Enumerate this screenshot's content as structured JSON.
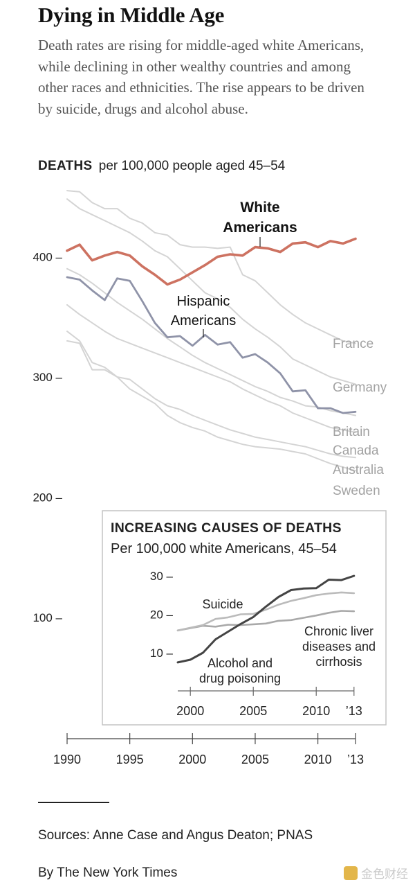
{
  "header": {
    "title": "Dying in Middle Age",
    "subtitle": "Death rates are rising for middle-aged white Americans, while declining in other wealthy countries and among other races and ethnicities. The rise appears to be driven by suicide, drugs and alcohol abuse."
  },
  "unit_label": {
    "bold": "DEATHS",
    "rest": "per 100,000 people aged 45–54"
  },
  "chart_data": [
    {
      "type": "line",
      "title": "",
      "xlabel": "",
      "ylabel": "",
      "x": [
        1990,
        1991,
        1992,
        1993,
        1994,
        1995,
        1996,
        1997,
        1998,
        1999,
        2000,
        2001,
        2002,
        2003,
        2004,
        2005,
        2006,
        2007,
        2008,
        2009,
        2010,
        2011,
        2012,
        2013
      ],
      "xlim": [
        1990,
        2013
      ],
      "ylim": [
        0,
        450
      ],
      "y_ticks": [
        "100",
        "200",
        "300",
        "400"
      ],
      "x_ticks": [
        "1990",
        "1995",
        "2000",
        "2005",
        "2010",
        "’13"
      ],
      "colors": {
        "white": "#cd7261",
        "hispanic": "#8f93a8",
        "other": "#d4d4d4"
      },
      "series": [
        {
          "name": "White\nAmericans",
          "highlight": "white",
          "values": [
            405,
            410,
            397,
            401,
            404,
            401,
            392,
            385,
            377,
            381,
            387,
            393,
            400,
            402,
            401,
            408,
            407,
            404,
            411,
            412,
            408,
            413,
            411,
            415
          ]
        },
        {
          "name": "Hispanic\nAmericans",
          "highlight": "hispanic",
          "values": [
            383,
            381,
            372,
            364,
            382,
            380,
            363,
            345,
            333,
            334,
            326,
            335,
            327,
            329,
            316,
            319,
            312,
            303,
            288,
            289,
            274,
            274,
            270,
            271
          ]
        },
        {
          "name": "France",
          "highlight": "other",
          "values": [
            455,
            454,
            445,
            440,
            440,
            432,
            428,
            420,
            418,
            410,
            408,
            408,
            407,
            408,
            385,
            380,
            370,
            360,
            352,
            345,
            340,
            335,
            330,
            328
          ]
        },
        {
          "name": "Germany",
          "highlight": "other",
          "values": [
            448,
            440,
            435,
            430,
            425,
            420,
            413,
            405,
            400,
            390,
            380,
            370,
            365,
            358,
            348,
            340,
            333,
            325,
            315,
            310,
            305,
            300,
            297,
            294
          ]
        },
        {
          "name": "Britain",
          "highlight": "other",
          "values": [
            390,
            385,
            378,
            370,
            362,
            355,
            348,
            340,
            332,
            325,
            318,
            312,
            307,
            302,
            297,
            292,
            288,
            283,
            280,
            276,
            275,
            272,
            270,
            268
          ]
        },
        {
          "name": "Canada",
          "highlight": "other",
          "values": [
            360,
            352,
            345,
            338,
            332,
            328,
            324,
            320,
            316,
            312,
            308,
            304,
            300,
            296,
            290,
            285,
            280,
            276,
            270,
            266,
            262,
            258,
            256,
            254
          ]
        },
        {
          "name": "Australia",
          "highlight": "other",
          "values": [
            338,
            330,
            312,
            308,
            300,
            298,
            290,
            282,
            276,
            273,
            268,
            264,
            260,
            256,
            253,
            250,
            248,
            246,
            244,
            242,
            239,
            236,
            234,
            233
          ]
        },
        {
          "name": "Sweden",
          "highlight": "other",
          "values": [
            330,
            328,
            306,
            306,
            300,
            290,
            284,
            278,
            268,
            262,
            258,
            255,
            250,
            247,
            244,
            242,
            241,
            240,
            238,
            236,
            232,
            228,
            225,
            222
          ]
        }
      ]
    },
    {
      "type": "line",
      "title": "INCREASING CAUSES OF DEATHS",
      "subtitle": "Per 100,000 white Americans, 45–54",
      "xlabel": "",
      "ylabel": "",
      "x": [
        1999,
        2000,
        2001,
        2002,
        2003,
        2004,
        2005,
        2006,
        2007,
        2008,
        2009,
        2010,
        2011,
        2012,
        2013
      ],
      "xlim": [
        1999,
        2013
      ],
      "ylim": [
        5,
        32
      ],
      "y_ticks": [
        "10",
        "20",
        "30"
      ],
      "x_ticks": [
        "2000",
        "2005",
        "2010",
        "’13"
      ],
      "series": [
        {
          "name": "Alcohol and\ndrug poisoning",
          "color": "#444444",
          "values": [
            7.5,
            8.2,
            10.0,
            13.5,
            15.5,
            17.5,
            19.3,
            22.0,
            24.5,
            26.3,
            26.7,
            26.8,
            29.0,
            28.9,
            30.0
          ]
        },
        {
          "name": "Suicide",
          "color": "#bbbbbb",
          "values": [
            15.8,
            16.5,
            17.2,
            18.8,
            19.2,
            20.0,
            20.1,
            21.2,
            22.5,
            23.5,
            24.2,
            25.0,
            25.4,
            25.7,
            25.5
          ]
        },
        {
          "name": "Chronic liver\ndiseases and\ncirrhosis",
          "color": "#a9a9a9",
          "values": [
            15.8,
            16.4,
            17.0,
            16.8,
            17.3,
            17.2,
            17.4,
            17.6,
            18.3,
            18.5,
            19.1,
            19.7,
            20.4,
            20.9,
            20.8
          ]
        }
      ]
    }
  ],
  "footer": {
    "source": "Sources: Anne Case and Angus Deaton; PNAS",
    "byline": "By The New York Times",
    "watermark": "金色财经"
  }
}
